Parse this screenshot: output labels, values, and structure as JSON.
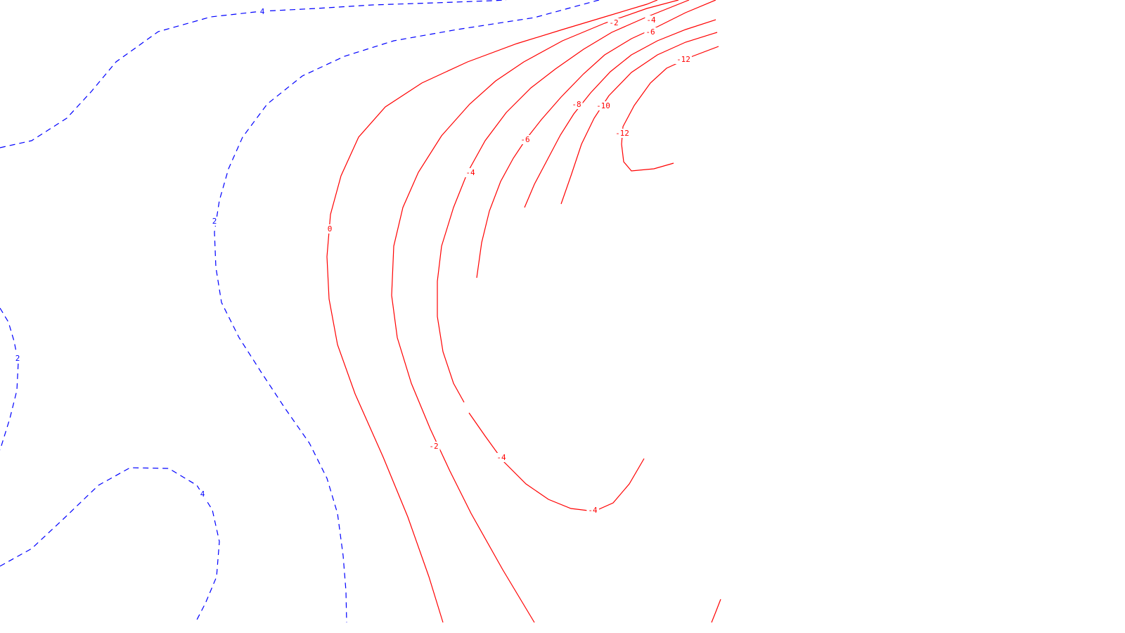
{
  "chart_data": {
    "type": "contour",
    "title": "",
    "xlabel": "",
    "ylabel": "",
    "grid": false,
    "legend": "none",
    "style": {
      "positive_color": "#0000ff",
      "positive_linestyle": "dashed",
      "negative_color": "#ff0000",
      "negative_linestyle": "solid"
    },
    "levels_shown": [
      4,
      2,
      0,
      -2,
      -4,
      -6,
      -8,
      -10,
      -12
    ],
    "contour_labels": [
      {
        "id": "p4-top",
        "text": "4",
        "level": 4
      },
      {
        "id": "p2-mid",
        "text": "2",
        "level": 2
      },
      {
        "id": "p2-left",
        "text": "2",
        "level": 2
      },
      {
        "id": "p4-bottom",
        "text": "4",
        "level": 4
      },
      {
        "id": "z0",
        "text": "0",
        "level": 0
      },
      {
        "id": "n2-top",
        "text": "-2",
        "level": -2
      },
      {
        "id": "n2-bottom",
        "text": "-2",
        "level": -2
      },
      {
        "id": "n4-top",
        "text": "-4",
        "level": -4
      },
      {
        "id": "n4-mid",
        "text": "-4",
        "level": -4
      },
      {
        "id": "n4-low",
        "text": "-4",
        "level": -4
      },
      {
        "id": "n4-btm",
        "text": "-4",
        "level": -4
      },
      {
        "id": "n6-top",
        "text": "-6",
        "level": -6
      },
      {
        "id": "n6-mid",
        "text": "-6",
        "level": -6
      },
      {
        "id": "n8",
        "text": "-8",
        "level": -8
      },
      {
        "id": "n10",
        "text": "-10",
        "level": -10
      },
      {
        "id": "n12-top",
        "text": "-12",
        "level": -12
      },
      {
        "id": "n12-mid",
        "text": "-12",
        "level": -12
      }
    ]
  }
}
